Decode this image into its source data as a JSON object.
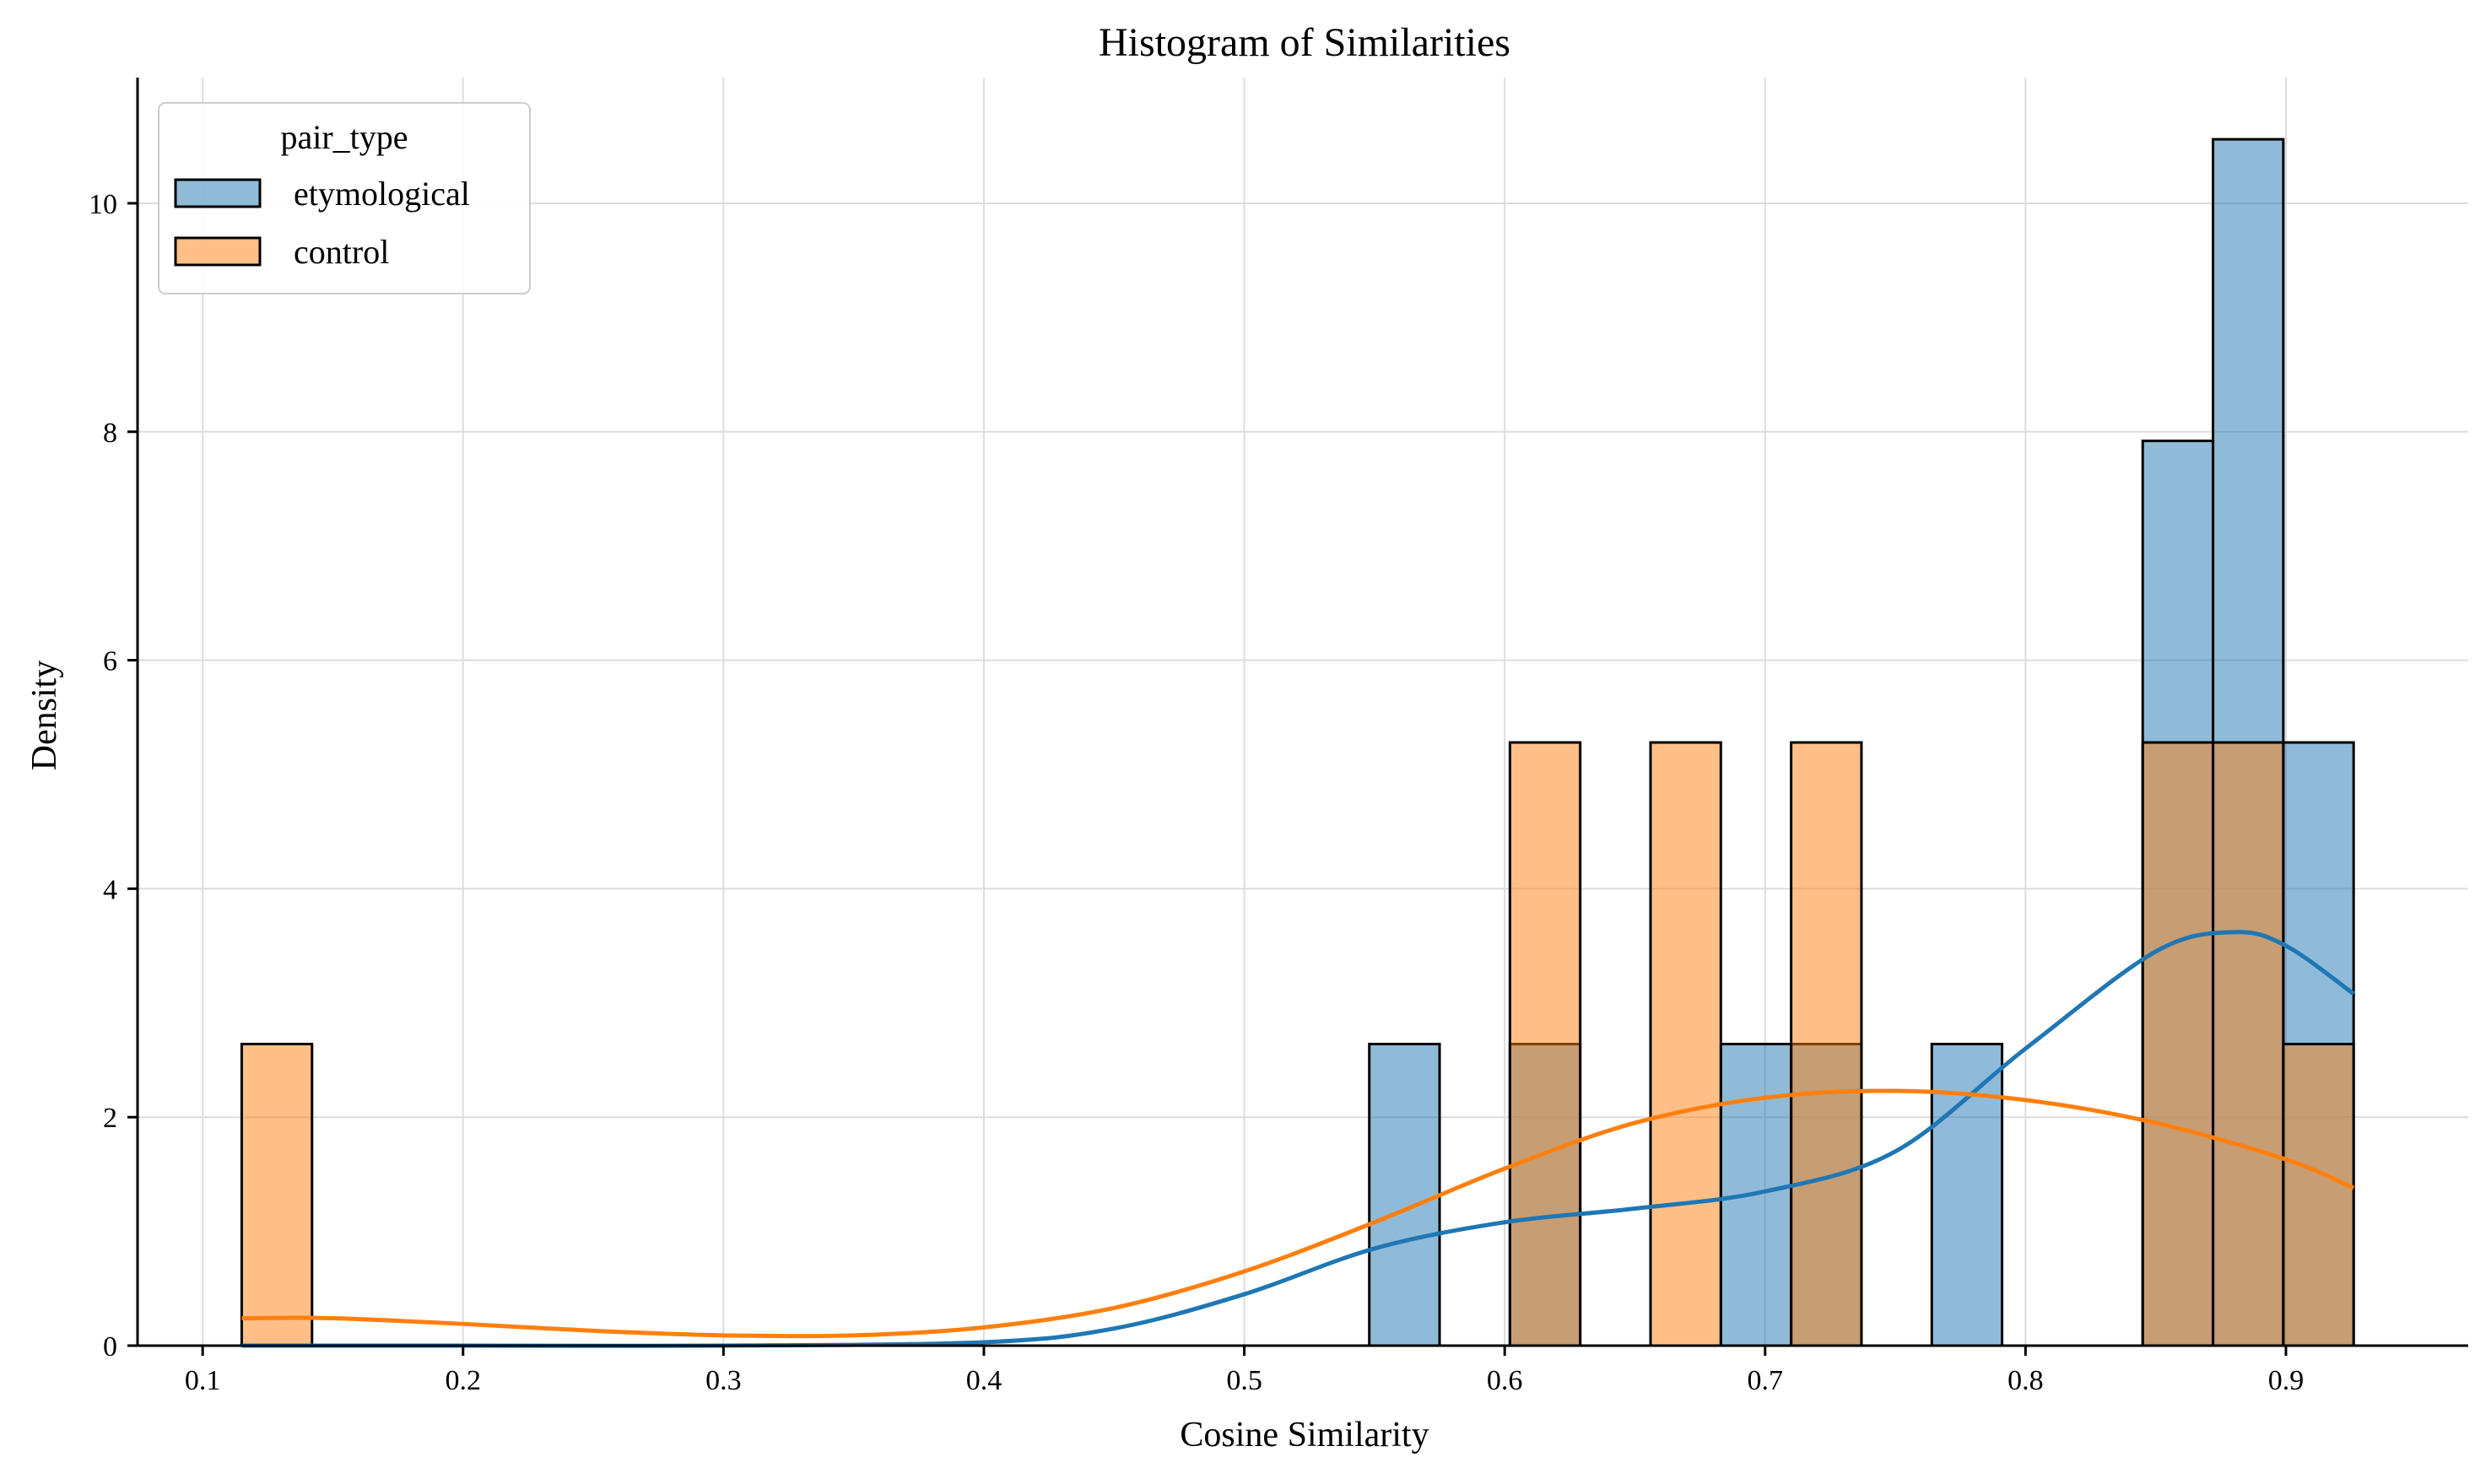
{
  "chart_data": {
    "type": "histogram",
    "title": "Histogram of Similarities",
    "xlabel": "Cosine Similarity",
    "ylabel": "Density",
    "xlim": [
      0.075,
      0.97
    ],
    "ylim": [
      0,
      11.1
    ],
    "xticks": [
      0.1,
      0.2,
      0.3,
      0.4,
      0.5,
      0.6,
      0.7,
      0.8,
      0.9
    ],
    "yticks": [
      0,
      2,
      4,
      6,
      8,
      10
    ],
    "grid": true,
    "legend": {
      "title": "pair_type",
      "placement": "top-left"
    },
    "series": [
      {
        "name": "etymological",
        "color": "#1f77b4",
        "bars": [
          {
            "x0": 0.548,
            "x1": 0.575,
            "density": 2.64
          },
          {
            "x0": 0.602,
            "x1": 0.629,
            "density": 2.64
          },
          {
            "x0": 0.683,
            "x1": 0.71,
            "density": 2.64
          },
          {
            "x0": 0.71,
            "x1": 0.737,
            "density": 2.64
          },
          {
            "x0": 0.764,
            "x1": 0.791,
            "density": 2.64
          },
          {
            "x0": 0.845,
            "x1": 0.872,
            "density": 7.92
          },
          {
            "x0": 0.872,
            "x1": 0.899,
            "density": 10.56
          },
          {
            "x0": 0.899,
            "x1": 0.926,
            "density": 5.28
          }
        ],
        "kde": {
          "x": [
            0.115,
            0.2,
            0.3,
            0.4,
            0.45,
            0.5,
            0.55,
            0.6,
            0.65,
            0.7,
            0.75,
            0.8,
            0.85,
            0.88,
            0.9,
            0.926
          ],
          "y": [
            0.0,
            0.0,
            0.0,
            0.03,
            0.15,
            0.45,
            0.85,
            1.08,
            1.2,
            1.35,
            1.7,
            2.6,
            3.45,
            3.62,
            3.5,
            3.08
          ]
        }
      },
      {
        "name": "control",
        "color": "#ff7f0e",
        "bars": [
          {
            "x0": 0.115,
            "x1": 0.142,
            "density": 2.64
          },
          {
            "x0": 0.602,
            "x1": 0.629,
            "density": 5.28
          },
          {
            "x0": 0.656,
            "x1": 0.683,
            "density": 5.28
          },
          {
            "x0": 0.71,
            "x1": 0.737,
            "density": 5.28
          },
          {
            "x0": 0.845,
            "x1": 0.872,
            "density": 5.28
          },
          {
            "x0": 0.872,
            "x1": 0.899,
            "density": 5.28
          },
          {
            "x0": 0.899,
            "x1": 0.926,
            "density": 2.64
          }
        ],
        "kde": {
          "x": [
            0.115,
            0.15,
            0.2,
            0.25,
            0.3,
            0.35,
            0.4,
            0.45,
            0.5,
            0.55,
            0.6,
            0.65,
            0.7,
            0.75,
            0.8,
            0.85,
            0.9,
            0.926
          ],
          "y": [
            0.24,
            0.24,
            0.19,
            0.13,
            0.09,
            0.09,
            0.16,
            0.33,
            0.65,
            1.08,
            1.55,
            1.95,
            2.17,
            2.23,
            2.15,
            1.95,
            1.63,
            1.38
          ]
        }
      }
    ]
  }
}
